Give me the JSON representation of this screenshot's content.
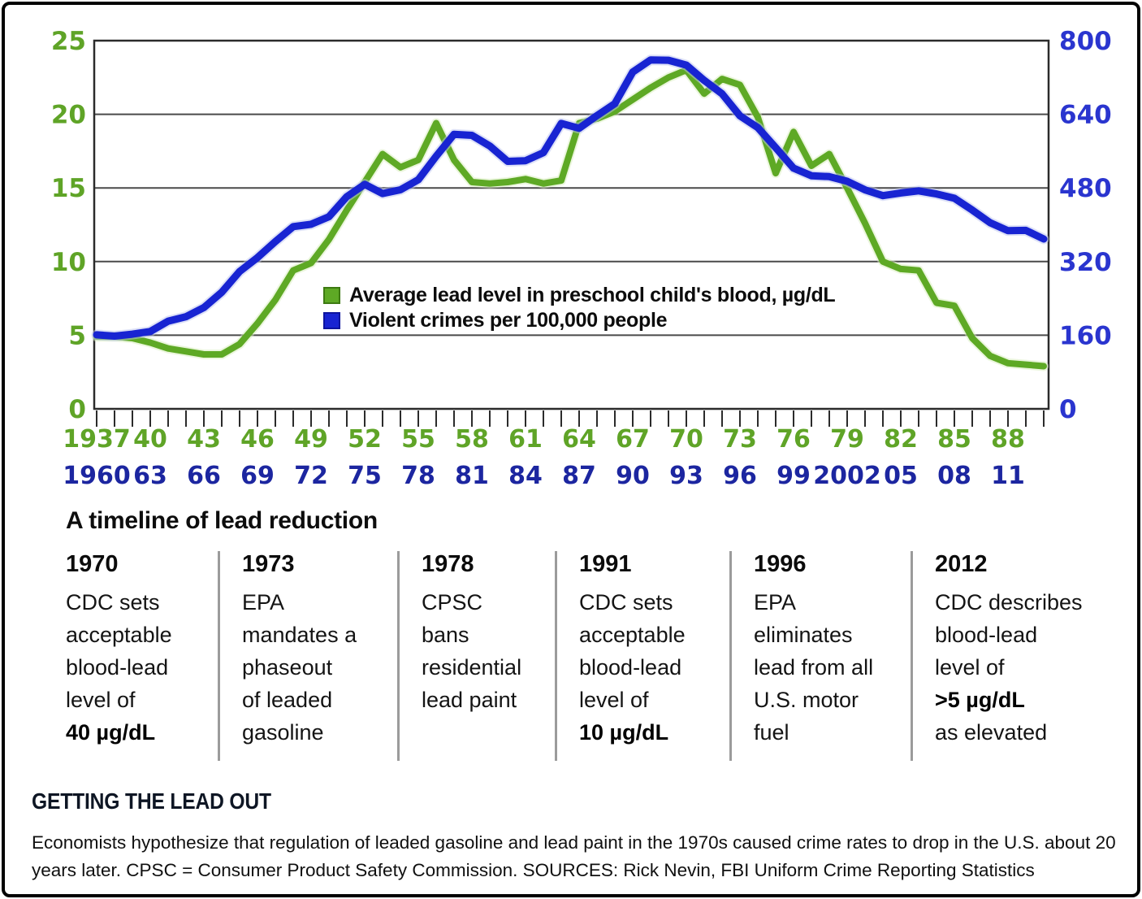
{
  "colors": {
    "lead_green": "#5ea925",
    "lead_green_dark": "#3d7a12",
    "lead_green_halo": "#d7edbb",
    "crime_blue": "#1824d2",
    "crime_blue_dark": "#0d149e",
    "crime_blue_halo": "#bcc3f0",
    "axis_green_text": "#5fa427",
    "axis_right_blue_text": "#2a35cf",
    "axis_bottom_blue_text": "#1c26a0",
    "grid_line": "#4a4a4a",
    "plot_border": "#2b2b2b"
  },
  "chart_data": {
    "type": "line",
    "legend_position": "inside-middle-left",
    "grid": "horizontal",
    "left_axis": {
      "label_color_key": "axis_green_text",
      "range": [
        0,
        25
      ],
      "ticks": [
        0,
        5,
        10,
        15,
        20,
        25
      ]
    },
    "right_axis": {
      "label_color_key": "axis_right_blue_text",
      "range": [
        0,
        800
      ],
      "ticks": [
        0,
        160,
        320,
        480,
        640,
        800
      ]
    },
    "x_axis": {
      "green_row_labels": [
        "1937",
        "40",
        "43",
        "46",
        "49",
        "52",
        "55",
        "58",
        "61",
        "64",
        "67",
        "70",
        "73",
        "76",
        "79",
        "82",
        "85",
        "88"
      ],
      "blue_row_labels": [
        "1960",
        "63",
        "66",
        "69",
        "72",
        "75",
        "78",
        "81",
        "84",
        "87",
        "90",
        "93",
        "96",
        "99",
        "2002",
        "05",
        "08",
        "11"
      ],
      "label_every_years": 3,
      "tick_every_years": 1
    },
    "series": [
      {
        "name": "Average lead level in preschool child's blood, µg/dL",
        "axis": "left",
        "color_key": "lead_green",
        "halo_key": "lead_green_halo",
        "swatch_border_key": "lead_green_dark",
        "year_start": 1937,
        "year_end": 1990,
        "values": [
          4.9,
          4.9,
          4.8,
          4.5,
          4.1,
          3.9,
          3.7,
          3.7,
          4.4,
          5.8,
          7.4,
          9.4,
          9.9,
          11.5,
          13.5,
          15.4,
          17.3,
          16.4,
          16.9,
          19.4,
          16.9,
          15.4,
          15.3,
          15.4,
          15.6,
          15.3,
          15.5,
          19.4,
          19.7,
          20.2,
          21.0,
          21.8,
          22.5,
          23.0,
          21.4,
          22.4,
          22.0,
          19.8,
          16.0,
          18.8,
          16.5,
          17.3,
          15.0,
          12.6,
          10.0,
          9.5,
          9.4,
          7.2,
          7.0,
          4.8,
          3.6,
          3.1,
          3.0,
          2.9
        ]
      },
      {
        "name": "Violent crimes per 100,000 people",
        "axis": "right",
        "color_key": "crime_blue",
        "halo_key": "crime_blue_halo",
        "swatch_border_key": "crime_blue_dark",
        "year_start": 1960,
        "year_end": 2013,
        "values": [
          160.9,
          158.1,
          162.3,
          168.2,
          190.6,
          200.2,
          220.0,
          253.2,
          298.4,
          328.7,
          363.5,
          396.0,
          401.0,
          417.4,
          461.1,
          487.8,
          467.8,
          475.9,
          497.8,
          548.9,
          596.6,
          594.3,
          571.1,
          537.7,
          539.2,
          556.6,
          620.1,
          609.7,
          637.2,
          663.1,
          731.8,
          758.1,
          757.5,
          746.8,
          713.6,
          684.5,
          636.6,
          611.0,
          567.6,
          523.0,
          506.5,
          504.5,
          494.4,
          475.8,
          463.2,
          469.0,
          473.6,
          466.9,
          457.5,
          431.9,
          404.5,
          387.1,
          387.8,
          369.1
        ]
      }
    ]
  },
  "timeline": {
    "heading": "A timeline of lead reduction",
    "items": [
      {
        "year": "1970",
        "lines": [
          {
            "t": "CDC sets"
          },
          {
            "t": "acceptable"
          },
          {
            "t": "blood-lead"
          },
          {
            "t": "level of"
          },
          {
            "t": "40 µg/dL",
            "b": true
          }
        ]
      },
      {
        "year": "1973",
        "lines": [
          {
            "t": "EPA"
          },
          {
            "t": "mandates a"
          },
          {
            "t": "phaseout"
          },
          {
            "t": "of leaded"
          },
          {
            "t": "gasoline"
          }
        ]
      },
      {
        "year": "1978",
        "lines": [
          {
            "t": "CPSC"
          },
          {
            "t": "bans"
          },
          {
            "t": "residential"
          },
          {
            "t": "lead paint"
          }
        ]
      },
      {
        "year": "1991",
        "lines": [
          {
            "t": "CDC sets"
          },
          {
            "t": "acceptable"
          },
          {
            "t": "blood-lead"
          },
          {
            "t": "level of"
          },
          {
            "t": "10 µg/dL",
            "b": true
          }
        ]
      },
      {
        "year": "1996",
        "lines": [
          {
            "t": "EPA"
          },
          {
            "t": "eliminates"
          },
          {
            "t": "lead from all"
          },
          {
            "t": "U.S. motor"
          },
          {
            "t": "fuel"
          }
        ]
      },
      {
        "year": "2012",
        "lines": [
          {
            "t": "CDC describes"
          },
          {
            "t": "blood-lead"
          },
          {
            "t": "level of"
          },
          {
            "t": ">5 µg/dL",
            "b": true
          },
          {
            "t": "as elevated"
          }
        ]
      }
    ]
  },
  "footer": {
    "heading": "GETTING THE LEAD OUT",
    "caption": "Economists hypothesize that regulation of leaded gasoline and lead paint in the 1970s caused crime rates to drop in the U.S. about 20 years later. CPSC = Consumer Product Safety Commission. SOURCES: Rick Nevin, FBI Uniform Crime Reporting Statistics"
  }
}
